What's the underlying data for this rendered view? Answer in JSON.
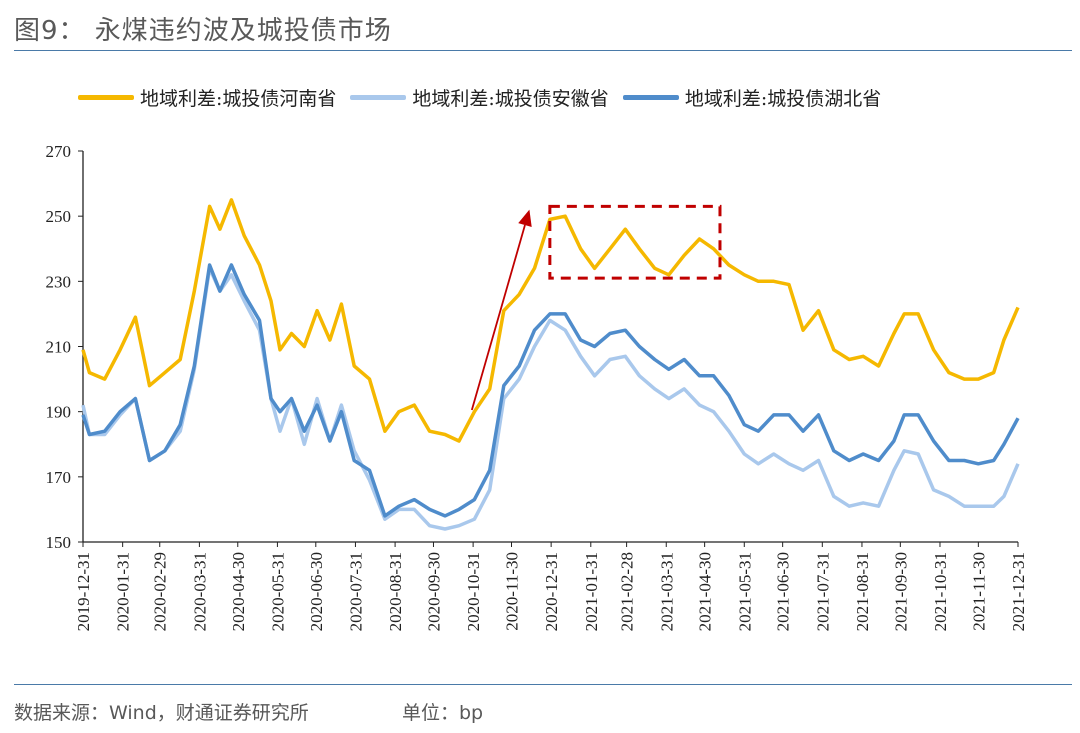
{
  "title": "图9： 永煤违约波及城投债市场",
  "footer": {
    "source": "数据来源：Wind，财通证券研究所",
    "unit": "单位：bp"
  },
  "chart_data": {
    "type": "line",
    "title": "",
    "xlabel": "",
    "ylabel": "",
    "ylim": [
      150,
      270
    ],
    "yticks": [
      "150",
      "170",
      "190",
      "210",
      "230",
      "250",
      "270"
    ],
    "xlim": [
      "2019-12-31",
      "2021-12-31"
    ],
    "xticks": [
      "2019-12-31",
      "2020-01-31",
      "2020-02-29",
      "2020-03-31",
      "2020-04-30",
      "2020-05-31",
      "2020-06-30",
      "2020-07-31",
      "2020-08-31",
      "2020-09-30",
      "2020-10-31",
      "2020-11-30",
      "2020-12-31",
      "2021-01-31",
      "2021-02-28",
      "2021-03-31",
      "2021-04-30",
      "2021-05-31",
      "2021-06-30",
      "2021-07-31",
      "2021-08-31",
      "2021-09-30",
      "2021-10-31",
      "2021-11-30",
      "2021-12-31"
    ],
    "grid": false,
    "legend_position": "top",
    "x": [
      "2019-12-31",
      "2020-01-05",
      "2020-01-17",
      "2020-01-29",
      "2020-02-10",
      "2020-02-21",
      "2020-03-04",
      "2020-03-16",
      "2020-03-27",
      "2020-04-08",
      "2020-04-16",
      "2020-04-25",
      "2020-05-05",
      "2020-05-17",
      "2020-05-26",
      "2020-06-02",
      "2020-06-11",
      "2020-06-21",
      "2020-07-01",
      "2020-07-11",
      "2020-07-20",
      "2020-07-30",
      "2020-08-11",
      "2020-08-23",
      "2020-09-03",
      "2020-09-15",
      "2020-09-27",
      "2020-10-09",
      "2020-10-20",
      "2020-11-01",
      "2020-11-13",
      "2020-11-24",
      "2020-12-06",
      "2020-12-18",
      "2020-12-30",
      "2021-01-11",
      "2021-01-23",
      "2021-02-03",
      "2021-02-15",
      "2021-02-27",
      "2021-03-10",
      "2021-03-22",
      "2021-04-02",
      "2021-04-14",
      "2021-04-26",
      "2021-05-07",
      "2021-05-19",
      "2021-05-31",
      "2021-06-11",
      "2021-06-23",
      "2021-07-05",
      "2021-07-16",
      "2021-07-28",
      "2021-08-09",
      "2021-08-21",
      "2021-09-01",
      "2021-09-13",
      "2021-09-25",
      "2021-10-03",
      "2021-10-14",
      "2021-10-26",
      "2021-11-07",
      "2021-11-19",
      "2021-11-30",
      "2021-12-12",
      "2021-12-20",
      "2021-12-31"
    ],
    "series": [
      {
        "name": "地域利差:城投债河南省",
        "color": "#F5B800",
        "values": [
          209,
          202,
          200,
          209,
          219,
          198,
          202,
          206,
          227,
          253,
          246,
          255,
          244,
          235,
          224,
          209,
          214,
          210,
          221,
          212,
          223,
          204,
          200,
          184,
          190,
          192,
          184,
          183,
          181,
          190,
          197,
          221,
          226,
          234,
          249,
          250,
          240,
          234,
          240,
          246,
          240,
          234,
          232,
          238,
          243,
          240,
          235,
          232,
          230,
          230,
          229,
          215,
          221,
          209,
          206,
          207,
          204,
          214,
          220,
          220,
          209,
          202,
          200,
          200,
          202,
          212,
          222
        ]
      },
      {
        "name": "地域利差:城投债安徽省",
        "color": "#A9C8EC",
        "values": [
          192,
          183,
          183,
          189,
          194,
          175,
          178,
          184,
          203,
          234,
          227,
          232,
          224,
          215,
          194,
          184,
          194,
          180,
          194,
          181,
          192,
          178,
          169,
          157,
          160,
          160,
          155,
          154,
          155,
          157,
          166,
          194,
          200,
          210,
          218,
          215,
          207,
          201,
          206,
          207,
          201,
          197,
          194,
          197,
          192,
          190,
          184,
          177,
          174,
          177,
          174,
          172,
          175,
          164,
          161,
          162,
          161,
          172,
          178,
          177,
          166,
          164,
          161,
          161,
          161,
          164,
          174
        ]
      },
      {
        "name": "地域利差:城投债湖北省",
        "color": "#4F8CCB",
        "values": [
          189,
          183,
          184,
          190,
          194,
          175,
          178,
          186,
          204,
          235,
          227,
          235,
          226,
          218,
          194,
          190,
          194,
          184,
          192,
          181,
          190,
          175,
          172,
          158,
          161,
          163,
          160,
          158,
          160,
          163,
          172,
          198,
          204,
          215,
          220,
          220,
          212,
          210,
          214,
          215,
          210,
          206,
          203,
          206,
          201,
          201,
          195,
          186,
          184,
          189,
          189,
          184,
          189,
          178,
          175,
          177,
          175,
          181,
          189,
          189,
          181,
          175,
          175,
          174,
          175,
          180,
          188
        ]
      }
    ],
    "annotations": {
      "box": {
        "x0": "2020-12-30",
        "x1": "2021-05-12",
        "y0": 231,
        "y1": 253,
        "color": "#C00000",
        "style": "dashed"
      },
      "arrow": {
        "from": [
          "2020-10-30",
          190.5
        ],
        "to": [
          "2020-12-14",
          252
        ],
        "color": "#C00000"
      }
    }
  }
}
